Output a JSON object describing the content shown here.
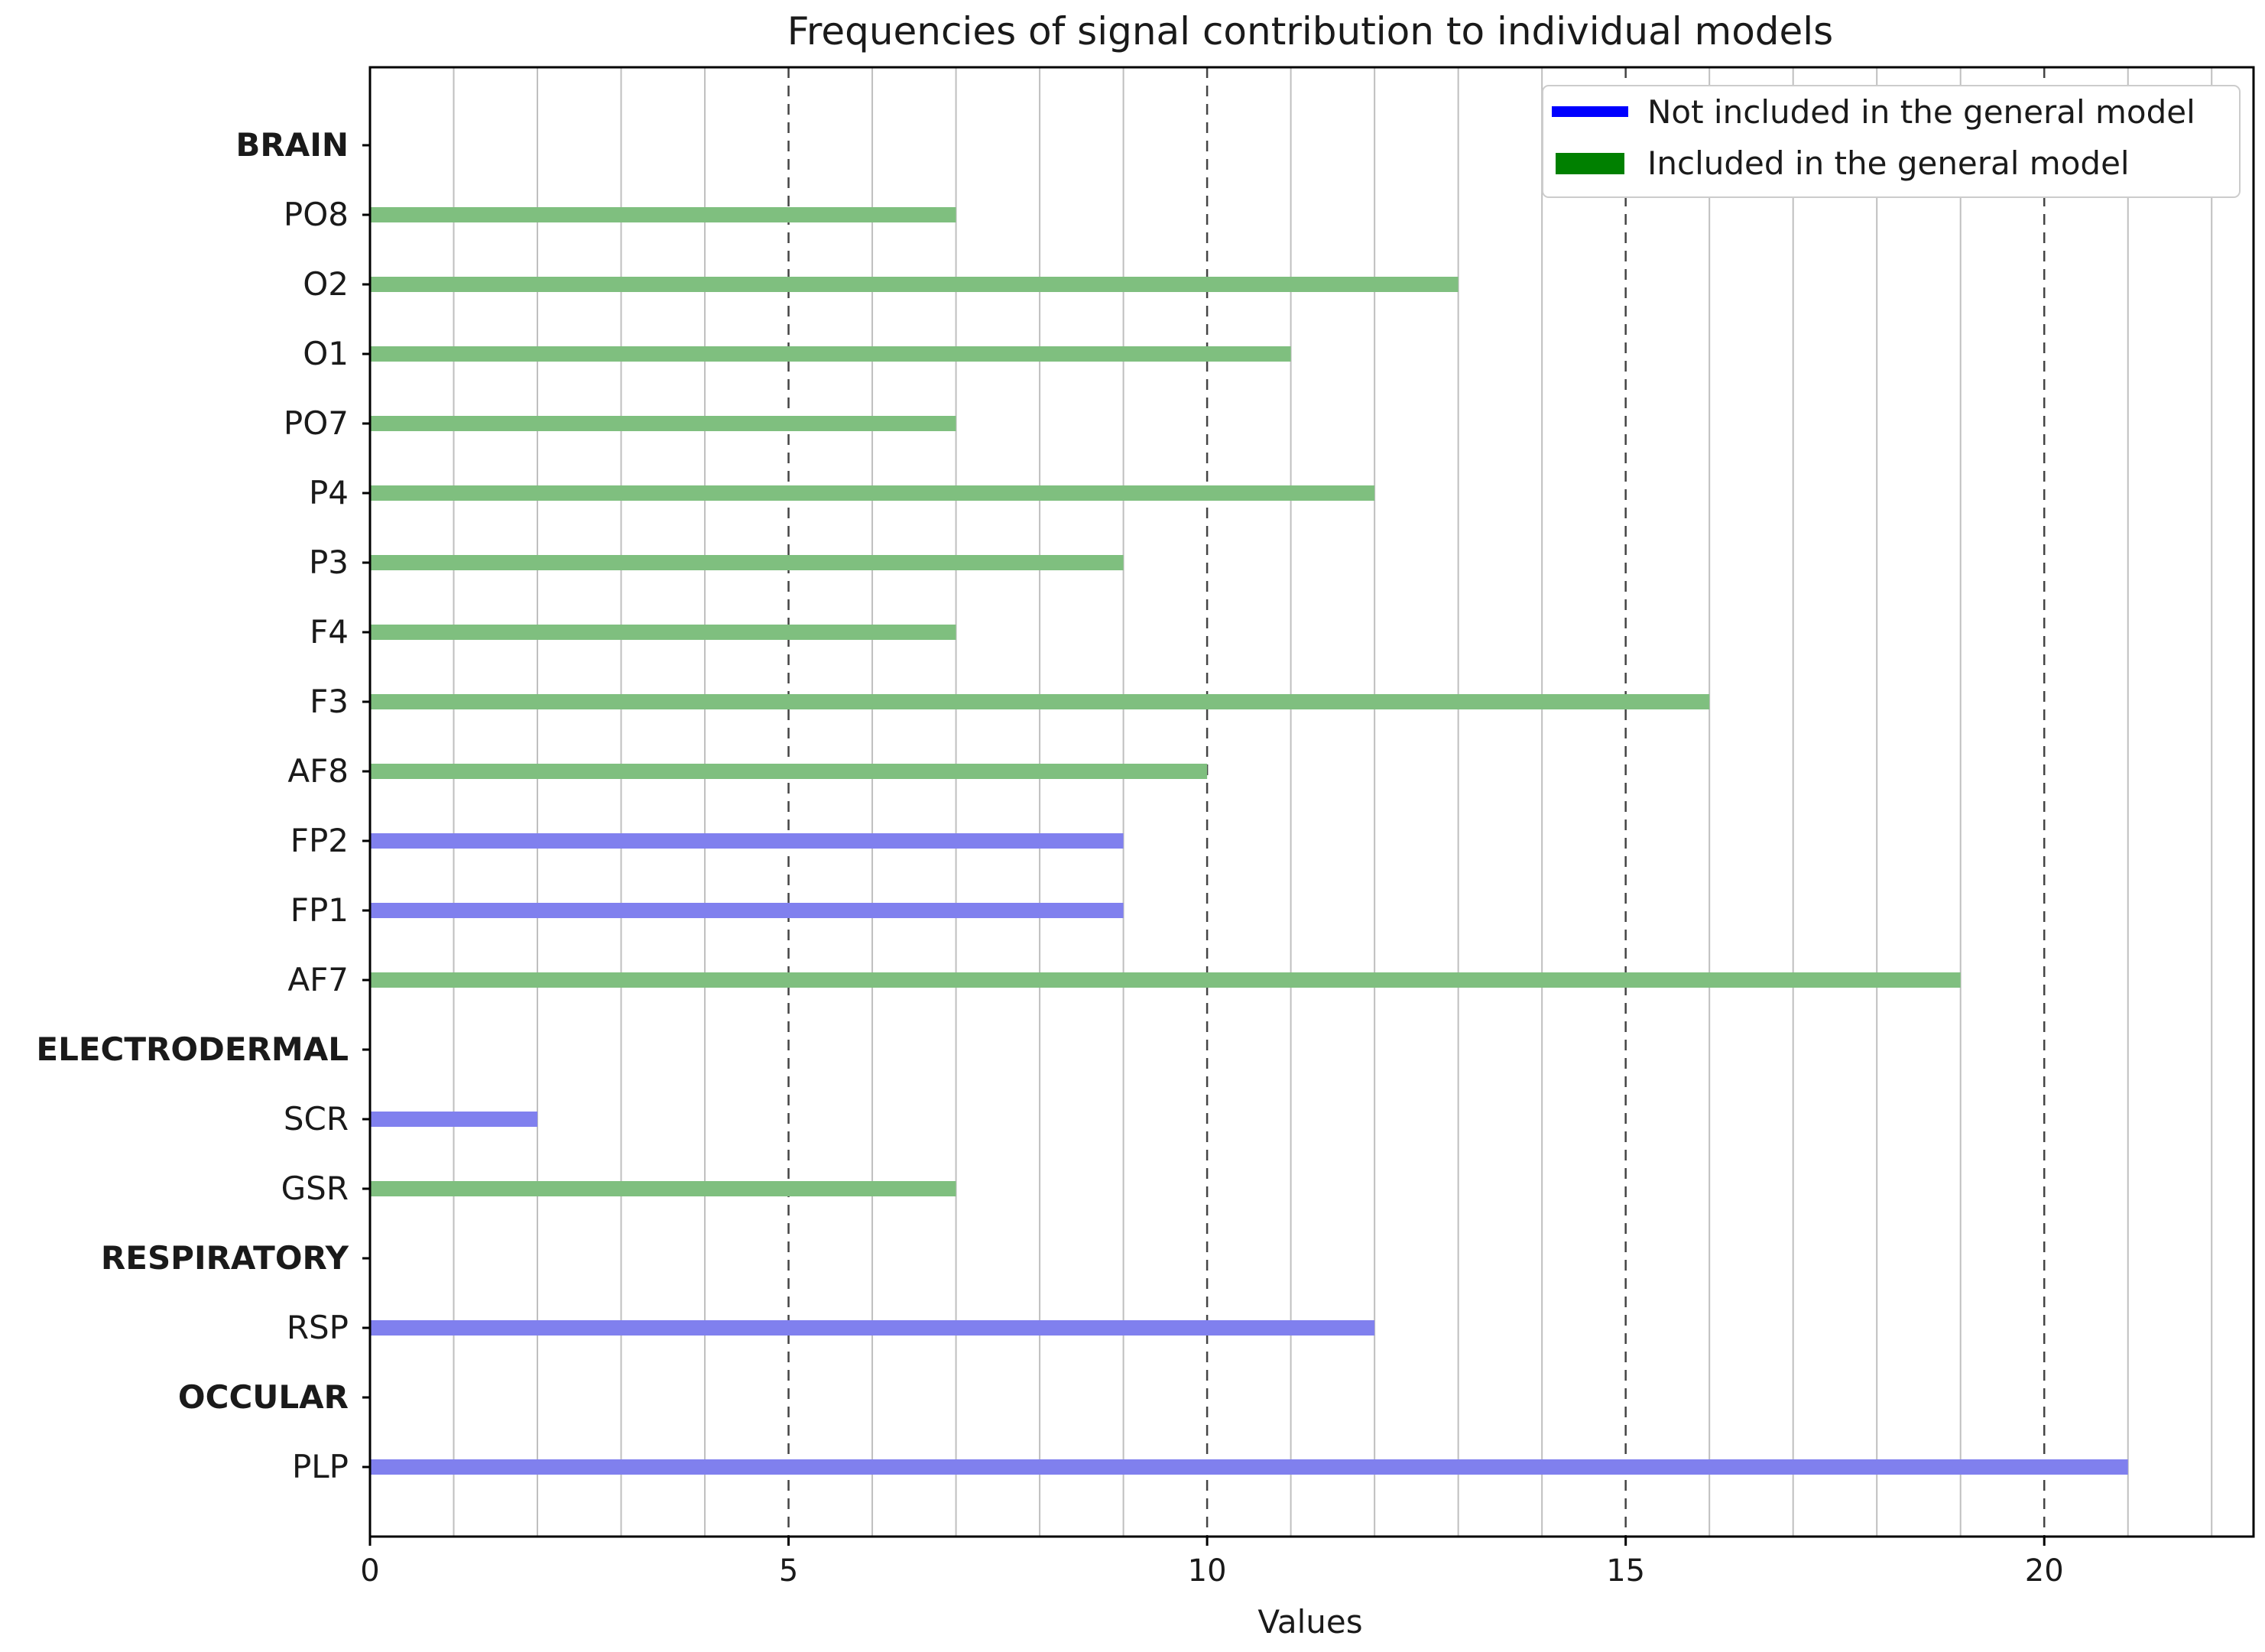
{
  "chart_data": {
    "type": "bar",
    "orientation": "horizontal",
    "title": "Frequencies of signal contribution to individual models",
    "xlabel": "Values",
    "ylabel": "",
    "xlim": [
      0,
      22.5
    ],
    "xticks": [
      0,
      5,
      10,
      15,
      20
    ],
    "xtick_labels": [
      "0",
      "5",
      "10",
      "15",
      "20"
    ],
    "minor_grid_step": 1,
    "major_grid_step": 5,
    "grid": true,
    "legend_position": "top-right",
    "rows": [
      {
        "label": "BRAIN",
        "kind": "group"
      },
      {
        "label": "PO8",
        "kind": "bar",
        "value": 7,
        "series": "included"
      },
      {
        "label": "O2",
        "kind": "bar",
        "value": 13,
        "series": "included"
      },
      {
        "label": "O1",
        "kind": "bar",
        "value": 11,
        "series": "included"
      },
      {
        "label": "PO7",
        "kind": "bar",
        "value": 7,
        "series": "included"
      },
      {
        "label": "P4",
        "kind": "bar",
        "value": 12,
        "series": "included"
      },
      {
        "label": "P3",
        "kind": "bar",
        "value": 9,
        "series": "included"
      },
      {
        "label": "F4",
        "kind": "bar",
        "value": 7,
        "series": "included"
      },
      {
        "label": "F3",
        "kind": "bar",
        "value": 16,
        "series": "included"
      },
      {
        "label": "AF8",
        "kind": "bar",
        "value": 10,
        "series": "included"
      },
      {
        "label": "FP2",
        "kind": "bar",
        "value": 9,
        "series": "not_included"
      },
      {
        "label": "FP1",
        "kind": "bar",
        "value": 9,
        "series": "not_included"
      },
      {
        "label": "AF7",
        "kind": "bar",
        "value": 19,
        "series": "included"
      },
      {
        "label": "ELECTRODERMAL",
        "kind": "group"
      },
      {
        "label": "SCR",
        "kind": "bar",
        "value": 2,
        "series": "not_included"
      },
      {
        "label": "GSR",
        "kind": "bar",
        "value": 7,
        "series": "included"
      },
      {
        "label": "RESPIRATORY",
        "kind": "group"
      },
      {
        "label": "RSP",
        "kind": "bar",
        "value": 12,
        "series": "not_included"
      },
      {
        "label": "OCCULAR",
        "kind": "group"
      },
      {
        "label": "PLP",
        "kind": "bar",
        "value": 21,
        "series": "not_included"
      }
    ],
    "series": [
      {
        "key": "not_included",
        "name": "Not included in the general model",
        "bar_color": "#8080ee",
        "legend_color": "#0000ff"
      },
      {
        "key": "included",
        "name": "Included in the general model",
        "bar_color": "#7fbf7f",
        "legend_color": "#008000"
      }
    ]
  }
}
